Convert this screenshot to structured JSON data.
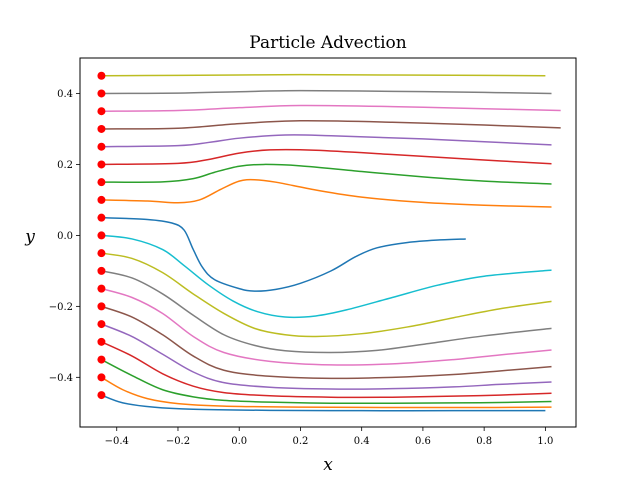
{
  "chart_data": {
    "type": "line",
    "title": "Particle Advection",
    "xlabel": "x",
    "ylabel": "y",
    "xlim": [
      -0.52,
      1.1
    ],
    "ylim": [
      -0.54,
      0.5
    ],
    "grid": false,
    "x_ticks": [
      -0.4,
      -0.2,
      0.0,
      0.2,
      0.4,
      0.6,
      0.8,
      1.0
    ],
    "y_ticks": [
      -0.4,
      -0.2,
      0.0,
      0.2,
      0.4
    ],
    "x_tick_labels": [
      "−0.4",
      "−0.2",
      "0.0",
      "0.2",
      "0.4",
      "0.6",
      "0.8",
      "1.0"
    ],
    "y_tick_labels": [
      "−0.4",
      "−0.2",
      "0.0",
      "0.2",
      "0.4"
    ],
    "start_marker_color": "#ff0000",
    "series": [
      {
        "color": "#bcbd22",
        "points": [
          [
            -0.45,
            0.45
          ],
          [
            -0.2,
            0.451
          ],
          [
            0.0,
            0.452
          ],
          [
            0.2,
            0.453
          ],
          [
            0.5,
            0.452
          ],
          [
            0.8,
            0.451
          ],
          [
            1.0,
            0.45
          ]
        ]
      },
      {
        "color": "#7f7f7f",
        "points": [
          [
            -0.45,
            0.4
          ],
          [
            -0.2,
            0.401
          ],
          [
            0.0,
            0.405
          ],
          [
            0.2,
            0.408
          ],
          [
            0.5,
            0.406
          ],
          [
            0.8,
            0.403
          ],
          [
            1.02,
            0.4
          ]
        ]
      },
      {
        "color": "#e377c2",
        "points": [
          [
            -0.45,
            0.35
          ],
          [
            -0.2,
            0.352
          ],
          [
            0.0,
            0.36
          ],
          [
            0.2,
            0.366
          ],
          [
            0.5,
            0.363
          ],
          [
            0.8,
            0.357
          ],
          [
            1.05,
            0.352
          ]
        ]
      },
      {
        "color": "#8c564b",
        "points": [
          [
            -0.45,
            0.3
          ],
          [
            -0.2,
            0.302
          ],
          [
            0.0,
            0.315
          ],
          [
            0.2,
            0.323
          ],
          [
            0.5,
            0.319
          ],
          [
            0.8,
            0.311
          ],
          [
            1.05,
            0.303
          ]
        ]
      },
      {
        "color": "#9467bd",
        "points": [
          [
            -0.45,
            0.25
          ],
          [
            -0.2,
            0.253
          ],
          [
            -0.1,
            0.262
          ],
          [
            0.0,
            0.274
          ],
          [
            0.15,
            0.283
          ],
          [
            0.3,
            0.281
          ],
          [
            0.6,
            0.272
          ],
          [
            1.02,
            0.255
          ]
        ]
      },
      {
        "color": "#d62728",
        "points": [
          [
            -0.45,
            0.2
          ],
          [
            -0.2,
            0.203
          ],
          [
            -0.1,
            0.214
          ],
          [
            0.0,
            0.232
          ],
          [
            0.1,
            0.241
          ],
          [
            0.25,
            0.24
          ],
          [
            0.5,
            0.228
          ],
          [
            0.75,
            0.215
          ],
          [
            1.02,
            0.202
          ]
        ]
      },
      {
        "color": "#2ca02c",
        "points": [
          [
            -0.45,
            0.15
          ],
          [
            -0.25,
            0.151
          ],
          [
            -0.15,
            0.16
          ],
          [
            -0.08,
            0.178
          ],
          [
            0.0,
            0.195
          ],
          [
            0.08,
            0.2
          ],
          [
            0.2,
            0.196
          ],
          [
            0.4,
            0.18
          ],
          [
            0.6,
            0.165
          ],
          [
            0.8,
            0.153
          ],
          [
            1.02,
            0.145
          ]
        ]
      },
      {
        "color": "#ff7f0e",
        "points": [
          [
            -0.45,
            0.1
          ],
          [
            -0.3,
            0.097
          ],
          [
            -0.2,
            0.092
          ],
          [
            -0.13,
            0.1
          ],
          [
            -0.06,
            0.13
          ],
          [
            0.0,
            0.153
          ],
          [
            0.05,
            0.157
          ],
          [
            0.12,
            0.15
          ],
          [
            0.25,
            0.128
          ],
          [
            0.4,
            0.108
          ],
          [
            0.6,
            0.093
          ],
          [
            0.8,
            0.085
          ],
          [
            1.02,
            0.08
          ]
        ]
      },
      {
        "color": "#1f77b4",
        "points": [
          [
            -0.45,
            0.05
          ],
          [
            -0.3,
            0.045
          ],
          [
            -0.22,
            0.035
          ],
          [
            -0.18,
            0.015
          ],
          [
            -0.15,
            -0.04
          ],
          [
            -0.12,
            -0.09
          ],
          [
            -0.08,
            -0.125
          ],
          [
            0.0,
            -0.15
          ],
          [
            0.05,
            -0.157
          ],
          [
            0.12,
            -0.152
          ],
          [
            0.2,
            -0.135
          ],
          [
            0.3,
            -0.1
          ],
          [
            0.38,
            -0.06
          ],
          [
            0.45,
            -0.035
          ],
          [
            0.55,
            -0.02
          ],
          [
            0.65,
            -0.013
          ],
          [
            0.74,
            -0.01
          ]
        ]
      },
      {
        "color": "#17becf",
        "points": [
          [
            -0.45,
            0.0
          ],
          [
            -0.35,
            -0.01
          ],
          [
            -0.25,
            -0.04
          ],
          [
            -0.18,
            -0.085
          ],
          [
            -0.1,
            -0.14
          ],
          [
            -0.02,
            -0.185
          ],
          [
            0.06,
            -0.215
          ],
          [
            0.15,
            -0.23
          ],
          [
            0.25,
            -0.227
          ],
          [
            0.35,
            -0.21
          ],
          [
            0.5,
            -0.175
          ],
          [
            0.65,
            -0.14
          ],
          [
            0.8,
            -0.115
          ],
          [
            1.02,
            -0.098
          ]
        ]
      },
      {
        "color": "#bcbd22",
        "points": [
          [
            -0.45,
            -0.05
          ],
          [
            -0.35,
            -0.065
          ],
          [
            -0.25,
            -0.105
          ],
          [
            -0.15,
            -0.165
          ],
          [
            -0.05,
            -0.22
          ],
          [
            0.05,
            -0.262
          ],
          [
            0.15,
            -0.28
          ],
          [
            0.25,
            -0.285
          ],
          [
            0.4,
            -0.277
          ],
          [
            0.55,
            -0.258
          ],
          [
            0.7,
            -0.232
          ],
          [
            0.85,
            -0.207
          ],
          [
            1.02,
            -0.186
          ]
        ]
      },
      {
        "color": "#7f7f7f",
        "points": [
          [
            -0.45,
            -0.1
          ],
          [
            -0.35,
            -0.12
          ],
          [
            -0.25,
            -0.165
          ],
          [
            -0.15,
            -0.225
          ],
          [
            -0.05,
            -0.28
          ],
          [
            0.05,
            -0.31
          ],
          [
            0.15,
            -0.325
          ],
          [
            0.3,
            -0.33
          ],
          [
            0.45,
            -0.324
          ],
          [
            0.6,
            -0.307
          ],
          [
            0.8,
            -0.283
          ],
          [
            1.02,
            -0.262
          ]
        ]
      },
      {
        "color": "#e377c2",
        "points": [
          [
            -0.45,
            -0.15
          ],
          [
            -0.35,
            -0.175
          ],
          [
            -0.25,
            -0.22
          ],
          [
            -0.15,
            -0.285
          ],
          [
            -0.05,
            -0.33
          ],
          [
            0.1,
            -0.355
          ],
          [
            0.3,
            -0.365
          ],
          [
            0.5,
            -0.362
          ],
          [
            0.7,
            -0.35
          ],
          [
            0.85,
            -0.337
          ],
          [
            1.02,
            -0.323
          ]
        ]
      },
      {
        "color": "#8c564b",
        "points": [
          [
            -0.45,
            -0.2
          ],
          [
            -0.35,
            -0.23
          ],
          [
            -0.25,
            -0.28
          ],
          [
            -0.15,
            -0.34
          ],
          [
            -0.05,
            -0.38
          ],
          [
            0.1,
            -0.397
          ],
          [
            0.3,
            -0.403
          ],
          [
            0.5,
            -0.4
          ],
          [
            0.7,
            -0.392
          ],
          [
            0.85,
            -0.382
          ],
          [
            1.02,
            -0.37
          ]
        ]
      },
      {
        "color": "#9467bd",
        "points": [
          [
            -0.45,
            -0.25
          ],
          [
            -0.35,
            -0.285
          ],
          [
            -0.25,
            -0.335
          ],
          [
            -0.15,
            -0.385
          ],
          [
            -0.05,
            -0.415
          ],
          [
            0.1,
            -0.428
          ],
          [
            0.3,
            -0.433
          ],
          [
            0.5,
            -0.432
          ],
          [
            0.7,
            -0.427
          ],
          [
            0.85,
            -0.42
          ],
          [
            1.02,
            -0.413
          ]
        ]
      },
      {
        "color": "#d62728",
        "points": [
          [
            -0.45,
            -0.3
          ],
          [
            -0.35,
            -0.34
          ],
          [
            -0.25,
            -0.39
          ],
          [
            -0.15,
            -0.425
          ],
          [
            -0.05,
            -0.443
          ],
          [
            0.1,
            -0.452
          ],
          [
            0.3,
            -0.456
          ],
          [
            0.5,
            -0.456
          ],
          [
            0.7,
            -0.453
          ],
          [
            0.85,
            -0.45
          ],
          [
            1.02,
            -0.445
          ]
        ]
      },
      {
        "color": "#2ca02c",
        "points": [
          [
            -0.45,
            -0.35
          ],
          [
            -0.35,
            -0.395
          ],
          [
            -0.25,
            -0.435
          ],
          [
            -0.15,
            -0.455
          ],
          [
            -0.05,
            -0.465
          ],
          [
            0.1,
            -0.47
          ],
          [
            0.3,
            -0.473
          ],
          [
            0.5,
            -0.473
          ],
          [
            0.7,
            -0.472
          ],
          [
            0.85,
            -0.471
          ],
          [
            1.02,
            -0.468
          ]
        ]
      },
      {
        "color": "#ff7f0e",
        "points": [
          [
            -0.45,
            -0.4
          ],
          [
            -0.38,
            -0.435
          ],
          [
            -0.3,
            -0.46
          ],
          [
            -0.2,
            -0.474
          ],
          [
            -0.05,
            -0.481
          ],
          [
            0.2,
            -0.484
          ],
          [
            0.5,
            -0.485
          ],
          [
            0.8,
            -0.485
          ],
          [
            1.02,
            -0.484
          ]
        ]
      },
      {
        "color": "#1f77b4",
        "points": [
          [
            -0.45,
            -0.45
          ],
          [
            -0.38,
            -0.472
          ],
          [
            -0.28,
            -0.484
          ],
          [
            -0.15,
            -0.49
          ],
          [
            0.1,
            -0.493
          ],
          [
            0.4,
            -0.494
          ],
          [
            0.7,
            -0.494
          ],
          [
            1.0,
            -0.494
          ]
        ]
      }
    ]
  }
}
